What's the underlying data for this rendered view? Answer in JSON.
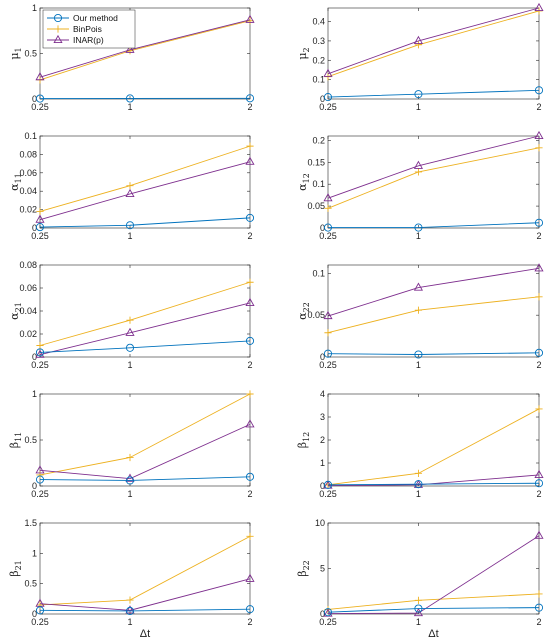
{
  "chart_data": {
    "type": "line",
    "layout": "5x2 grid of subplots",
    "x": [
      "0.25",
      "1",
      "2"
    ],
    "x_numeric": [
      0.25,
      1,
      2
    ],
    "xlabel": "Δt",
    "legend": {
      "placement": "top-left of first subplot",
      "entries": [
        "Our method",
        "BinPois",
        "INAR(p)"
      ]
    },
    "colors": {
      "Our method": "#0072BD",
      "BinPois": "#EDB120",
      "INAR(p)": "#7E2F8E"
    },
    "markers": {
      "Our method": "circle",
      "BinPois": "plus",
      "INAR(p)": "triangle"
    },
    "grid": false,
    "subplots": [
      {
        "id": "mu1",
        "ylabel_base": "μ",
        "ylabel_sub": "1",
        "ylim": [
          0,
          1
        ],
        "yticks": [
          0,
          0.5,
          1
        ],
        "ytick_labels": [
          "0",
          "0.5",
          "1"
        ],
        "series": [
          {
            "name": "Our method",
            "values": [
              0.005,
              0.006,
              0.008
            ]
          },
          {
            "name": "BinPois",
            "values": [
              0.21,
              0.53,
              0.86
            ]
          },
          {
            "name": "INAR(p)",
            "values": [
              0.24,
              0.54,
              0.87
            ]
          }
        ]
      },
      {
        "id": "mu2",
        "ylabel_base": "μ",
        "ylabel_sub": "2",
        "ylim": [
          0,
          0.47
        ],
        "yticks": [
          0,
          0.1,
          0.2,
          0.3,
          0.4
        ],
        "ytick_labels": [
          "0",
          "0.1",
          "0.2",
          "0.3",
          "0.4"
        ],
        "series": [
          {
            "name": "Our method",
            "values": [
              0.01,
              0.025,
              0.045
            ]
          },
          {
            "name": "BinPois",
            "values": [
              0.115,
              0.28,
              0.455
            ]
          },
          {
            "name": "INAR(p)",
            "values": [
              0.13,
              0.3,
              0.47
            ]
          }
        ]
      },
      {
        "id": "a11",
        "ylabel_base": "α",
        "ylabel_sub": "11",
        "ylim": [
          0,
          0.1
        ],
        "yticks": [
          0,
          0.02,
          0.04,
          0.06,
          0.08,
          0.1
        ],
        "ytick_labels": [
          "0",
          "0.02",
          "0.04",
          "0.06",
          "0.08",
          "0.1"
        ],
        "series": [
          {
            "name": "Our method",
            "values": [
              0.001,
              0.003,
              0.011
            ]
          },
          {
            "name": "BinPois",
            "values": [
              0.018,
              0.046,
              0.089
            ]
          },
          {
            "name": "INAR(p)",
            "values": [
              0.009,
              0.037,
              0.072
            ]
          }
        ]
      },
      {
        "id": "a12",
        "ylabel_base": "α",
        "ylabel_sub": "12",
        "ylim": [
          0,
          0.21
        ],
        "yticks": [
          0,
          0.05,
          0.1,
          0.15,
          0.2
        ],
        "ytick_labels": [
          "0",
          "0.05",
          "0.1",
          "0.15",
          "0.2"
        ],
        "series": [
          {
            "name": "Our method",
            "values": [
              0.001,
              0.001,
              0.012
            ]
          },
          {
            "name": "BinPois",
            "values": [
              0.045,
              0.128,
              0.183
            ]
          },
          {
            "name": "INAR(p)",
            "values": [
              0.068,
              0.142,
              0.21
            ]
          }
        ]
      },
      {
        "id": "a21",
        "ylabel_base": "α",
        "ylabel_sub": "21",
        "ylim": [
          0,
          0.08
        ],
        "yticks": [
          0,
          0.02,
          0.04,
          0.06,
          0.08
        ],
        "ytick_labels": [
          "0",
          "0.02",
          "0.04",
          "0.06",
          "0.08"
        ],
        "series": [
          {
            "name": "Our method",
            "values": [
              0.004,
              0.008,
              0.014
            ]
          },
          {
            "name": "BinPois",
            "values": [
              0.01,
              0.032,
              0.065
            ]
          },
          {
            "name": "INAR(p)",
            "values": [
              0.002,
              0.021,
              0.047
            ]
          }
        ]
      },
      {
        "id": "a22",
        "ylabel_base": "α",
        "ylabel_sub": "22",
        "ylim": [
          0,
          0.11
        ],
        "yticks": [
          0,
          0.05,
          0.1
        ],
        "ytick_labels": [
          "0",
          "0.05",
          "0.1"
        ],
        "series": [
          {
            "name": "Our method",
            "values": [
              0.004,
              0.003,
              0.005
            ]
          },
          {
            "name": "BinPois",
            "values": [
              0.029,
              0.056,
              0.072
            ]
          },
          {
            "name": "INAR(p)",
            "values": [
              0.049,
              0.083,
              0.106
            ]
          }
        ]
      },
      {
        "id": "b11",
        "ylabel_base": "β",
        "ylabel_sub": "11",
        "ylim": [
          0,
          1
        ],
        "yticks": [
          0,
          0.5,
          1
        ],
        "ytick_labels": [
          "0",
          "0.5",
          "1"
        ],
        "series": [
          {
            "name": "Our method",
            "values": [
              0.07,
              0.06,
              0.1
            ]
          },
          {
            "name": "BinPois",
            "values": [
              0.12,
              0.31,
              1.0
            ]
          },
          {
            "name": "INAR(p)",
            "values": [
              0.17,
              0.08,
              0.67
            ]
          }
        ]
      },
      {
        "id": "b12",
        "ylabel_base": "β",
        "ylabel_sub": "12",
        "ylim": [
          0,
          4
        ],
        "yticks": [
          0,
          1,
          2,
          3,
          4
        ],
        "ytick_labels": [
          "0",
          "1",
          "2",
          "3",
          "4"
        ],
        "series": [
          {
            "name": "Our method",
            "values": [
              0.05,
              0.08,
              0.12
            ]
          },
          {
            "name": "BinPois",
            "values": [
              0.05,
              0.55,
              3.35
            ]
          },
          {
            "name": "INAR(p)",
            "values": [
              0.02,
              0.05,
              0.48
            ]
          }
        ]
      },
      {
        "id": "b21",
        "ylabel_base": "β",
        "ylabel_sub": "21",
        "ylim": [
          0,
          1.5
        ],
        "yticks": [
          0,
          0.5,
          1,
          1.5
        ],
        "ytick_labels": [
          "0",
          "0.5",
          "1",
          "1.5"
        ],
        "series": [
          {
            "name": "Our method",
            "values": [
              0.06,
              0.05,
              0.08
            ]
          },
          {
            "name": "BinPois",
            "values": [
              0.15,
              0.23,
              1.28
            ]
          },
          {
            "name": "INAR(p)",
            "values": [
              0.17,
              0.06,
              0.58
            ]
          }
        ]
      },
      {
        "id": "b22",
        "ylabel_base": "β",
        "ylabel_sub": "22",
        "ylim": [
          0,
          10
        ],
        "yticks": [
          0,
          5,
          10
        ],
        "ytick_labels": [
          "0",
          "5",
          "10"
        ],
        "series": [
          {
            "name": "Our method",
            "values": [
              0.2,
              0.6,
              0.7
            ]
          },
          {
            "name": "BinPois",
            "values": [
              0.5,
              1.5,
              2.2
            ]
          },
          {
            "name": "INAR(p)",
            "values": [
              0.05,
              0.1,
              8.6
            ]
          }
        ]
      }
    ]
  }
}
